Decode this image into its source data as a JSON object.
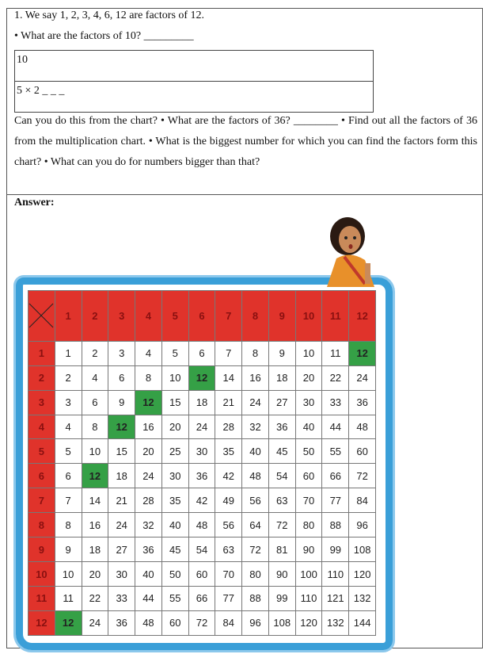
{
  "question": {
    "line1": "1. We say 1, 2, 3, 4, 6, 12 are factors of 12.",
    "line2": "• What are the factors of 10? _________",
    "box": [
      "10",
      "5 × 2 _ _ _"
    ],
    "paragraph": "Can you do this from the chart? • What are the factors of 36? ________ • Find out all the factors of 36 from the multiplication chart. • What is the biggest number for which you can find the factors form this chart? • What can you do for numbers bigger than that?"
  },
  "answer": {
    "label": "Answer:",
    "chart": {
      "columns": [
        1,
        2,
        3,
        4,
        5,
        6,
        7,
        8,
        9,
        10,
        11,
        12
      ],
      "row_headers": [
        1,
        2,
        3,
        4,
        5,
        6,
        7,
        8,
        9,
        10,
        11,
        12
      ],
      "cells": [
        [
          1,
          2,
          3,
          4,
          5,
          6,
          7,
          8,
          9,
          10,
          11,
          12
        ],
        [
          2,
          4,
          6,
          8,
          10,
          12,
          14,
          16,
          18,
          20,
          22,
          24
        ],
        [
          3,
          6,
          9,
          12,
          15,
          18,
          21,
          24,
          27,
          30,
          33,
          36
        ],
        [
          4,
          8,
          12,
          16,
          20,
          24,
          28,
          32,
          36,
          40,
          44,
          48
        ],
        [
          5,
          10,
          15,
          20,
          25,
          30,
          35,
          40,
          45,
          50,
          55,
          60
        ],
        [
          6,
          12,
          18,
          24,
          30,
          36,
          42,
          48,
          54,
          60,
          66,
          72
        ],
        [
          7,
          14,
          21,
          28,
          35,
          42,
          49,
          56,
          63,
          70,
          77,
          84
        ],
        [
          8,
          16,
          24,
          32,
          40,
          48,
          56,
          64,
          72,
          80,
          88,
          96
        ],
        [
          9,
          18,
          27,
          36,
          45,
          54,
          63,
          72,
          81,
          90,
          99,
          108
        ],
        [
          10,
          20,
          30,
          40,
          50,
          60,
          70,
          80,
          90,
          100,
          110,
          120
        ],
        [
          11,
          22,
          33,
          44,
          55,
          66,
          77,
          88,
          99,
          110,
          121,
          132
        ],
        [
          12,
          24,
          36,
          48,
          60,
          72,
          84,
          96,
          108,
          120,
          132,
          144
        ]
      ]
    }
  }
}
